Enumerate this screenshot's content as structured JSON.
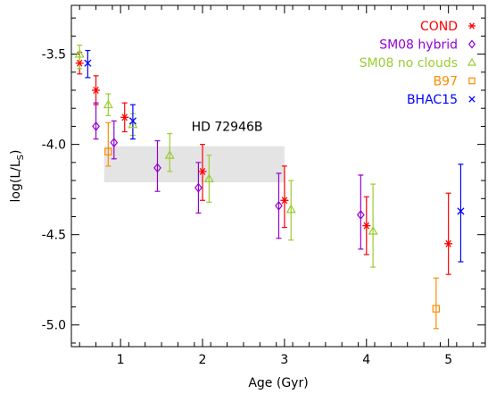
{
  "chart_data": {
    "type": "scatter",
    "xlabel": "Age (Gyr)",
    "ylabel_main": "log(L/L",
    "ylabel_sub": "S",
    "ylabel_close": ")",
    "xlim": [
      0.4,
      5.45
    ],
    "ylim": [
      -5.12,
      -3.23
    ],
    "x_ticks": [
      1,
      2,
      3,
      4,
      5
    ],
    "y_ticks": [
      -3.5,
      -4.0,
      -4.5,
      -5.0
    ],
    "x_tick_labels": [
      "1",
      "2",
      "3",
      "4",
      "5"
    ],
    "y_tick_labels": [
      "-3.5",
      "-4.0",
      "-4.5",
      "-5.0"
    ],
    "annotation": {
      "text": "HD 72946B",
      "x": 2.3,
      "y": -3.9
    },
    "band": {
      "x": [
        0.8,
        3.0
      ],
      "y": [
        -4.21,
        -4.01
      ],
      "color": "#e4e4e4"
    },
    "series": [
      {
        "name": "COND",
        "color": "#ff0000",
        "marker": "asterisk",
        "points": [
          {
            "x": 0.5,
            "y": -3.55,
            "lo": -3.61,
            "hi": -3.49
          },
          {
            "x": 0.7,
            "y": -3.7,
            "lo": -3.78,
            "hi": -3.62
          },
          {
            "x": 1.05,
            "y": -3.85,
            "lo": -3.93,
            "hi": -3.77
          },
          {
            "x": 2.0,
            "y": -4.15,
            "lo": -4.31,
            "hi": -4.0
          },
          {
            "x": 3.0,
            "y": -4.31,
            "lo": -4.46,
            "hi": -4.12
          },
          {
            "x": 4.0,
            "y": -4.45,
            "lo": -4.61,
            "hi": -4.29
          },
          {
            "x": 5.0,
            "y": -4.55,
            "lo": -4.72,
            "hi": -4.27
          }
        ]
      },
      {
        "name": "SM08 hybrid",
        "color": "#9400d3",
        "marker": "diamond",
        "points": [
          {
            "x": 0.7,
            "y": -3.9,
            "lo": -3.97,
            "hi": -3.77
          },
          {
            "x": 0.92,
            "y": -3.99,
            "lo": -4.08,
            "hi": -3.87
          },
          {
            "x": 1.45,
            "y": -4.13,
            "lo": -4.26,
            "hi": -3.98
          },
          {
            "x": 1.95,
            "y": -4.24,
            "lo": -4.38,
            "hi": -4.1
          },
          {
            "x": 2.93,
            "y": -4.34,
            "lo": -4.52,
            "hi": -4.16
          },
          {
            "x": 3.93,
            "y": -4.39,
            "lo": -4.58,
            "hi": -4.17
          }
        ]
      },
      {
        "name": "SM08 no clouds",
        "color": "#9acd32",
        "marker": "triangle",
        "points": [
          {
            "x": 0.5,
            "y": -3.5,
            "lo": -3.58,
            "hi": -3.45
          },
          {
            "x": 0.85,
            "y": -3.78,
            "lo": -3.84,
            "hi": -3.72
          },
          {
            "x": 1.15,
            "y": -3.89,
            "lo": -3.95,
            "hi": -3.83
          },
          {
            "x": 1.6,
            "y": -4.06,
            "lo": -4.15,
            "hi": -3.94
          },
          {
            "x": 2.08,
            "y": -4.19,
            "lo": -4.32,
            "hi": -4.06
          },
          {
            "x": 3.08,
            "y": -4.36,
            "lo": -4.53,
            "hi": -4.2
          },
          {
            "x": 4.08,
            "y": -4.48,
            "lo": -4.68,
            "hi": -4.22
          }
        ]
      },
      {
        "name": "B97",
        "color": "#ff8c00",
        "marker": "square",
        "points": [
          {
            "x": 0.85,
            "y": -4.04,
            "lo": -4.12,
            "hi": -3.88
          },
          {
            "x": 4.85,
            "y": -4.91,
            "lo": -5.02,
            "hi": -4.74
          }
        ]
      },
      {
        "name": "BHAC15",
        "color": "#0000ff",
        "marker": "x",
        "points": [
          {
            "x": 0.6,
            "y": -3.55,
            "lo": -3.63,
            "hi": -3.48
          },
          {
            "x": 1.15,
            "y": -3.87,
            "lo": -3.97,
            "hi": -3.78
          },
          {
            "x": 5.15,
            "y": -4.37,
            "lo": -4.65,
            "hi": -4.11
          }
        ]
      }
    ]
  }
}
